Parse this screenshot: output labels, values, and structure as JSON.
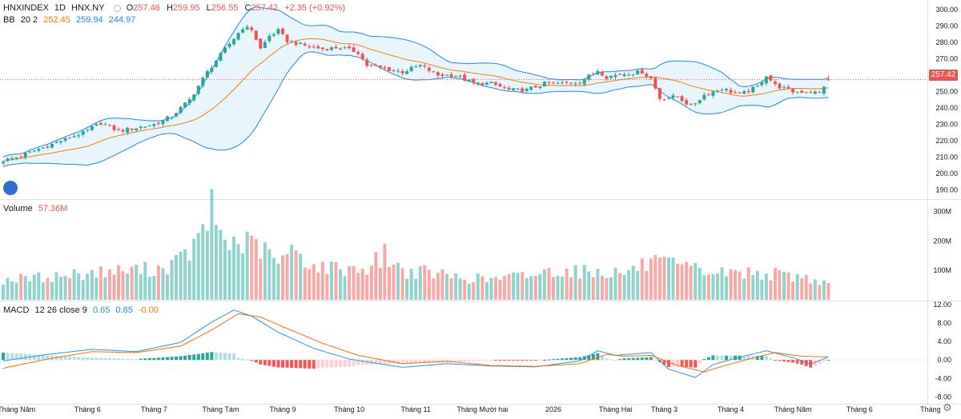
{
  "header": {
    "symbol": "HNXINDEX",
    "interval": "1D",
    "exchange": "HNX.NY",
    "open_label": "O",
    "open": "257.46",
    "high_label": "H",
    "high": "259.95",
    "low_label": "L",
    "low": "256.55",
    "close_label": "C",
    "close": "257.42",
    "change": "+2.35 (+0.92%)"
  },
  "bb_legend": {
    "name": "BB",
    "params": "20 2",
    "basis": "252.45",
    "upper": "259.94",
    "lower": "244.97"
  },
  "volume_legend": {
    "name": "Volume",
    "value": "57.36M"
  },
  "macd_legend": {
    "name": "MACD",
    "params": "12 26 close 9",
    "macd": "0.65",
    "signal": "0.65",
    "hist": "-0.00"
  },
  "price_tag": "257.42",
  "colors": {
    "up": "#26a69a",
    "down": "#ef5350",
    "basis": "#f57c00",
    "band": "#1e88e5",
    "band_fill": "#e3f2fd"
  },
  "icons": {
    "logo": "tradingview-logo-icon",
    "settings": "gear-icon"
  },
  "chart_data": [
    {
      "type": "candlestick",
      "title": "HNXINDEX 1D",
      "y_ticks": [
        "300.00",
        "290.00",
        "280.00",
        "270.00",
        "260.00",
        "250.00",
        "240.00",
        "230.00",
        "220.00",
        "210.00",
        "200.00",
        "190.00"
      ],
      "ylim": [
        185,
        300
      ],
      "x_ticks": [
        "Tháng Năm",
        "Tháng 6",
        "Tháng 7",
        "Tháng Tám",
        "Tháng 9",
        "Tháng 10",
        "Tháng 11",
        "Tháng Mười hai",
        "2026",
        "Tháng Hai",
        "Tháng 3",
        "Tháng 4",
        "Tháng Năm",
        "Tháng 6",
        "Tháng"
      ],
      "close_anchors": [
        [
          0,
          208
        ],
        [
          3,
          210
        ],
        [
          6,
          213
        ],
        [
          12,
          219
        ],
        [
          18,
          225
        ],
        [
          22,
          231
        ],
        [
          26,
          226
        ],
        [
          30,
          228
        ],
        [
          34,
          230
        ],
        [
          38,
          235
        ],
        [
          42,
          245
        ],
        [
          46,
          262
        ],
        [
          50,
          276
        ],
        [
          54,
          289
        ],
        [
          56,
          288
        ],
        [
          58,
          276
        ],
        [
          60,
          284
        ],
        [
          62,
          287
        ],
        [
          64,
          281
        ],
        [
          68,
          278
        ],
        [
          72,
          276
        ],
        [
          76,
          277
        ],
        [
          80,
          274
        ],
        [
          82,
          266
        ],
        [
          86,
          264
        ],
        [
          90,
          262
        ],
        [
          94,
          266
        ],
        [
          98,
          260
        ],
        [
          102,
          260
        ],
        [
          106,
          255
        ],
        [
          110,
          255
        ],
        [
          114,
          251
        ],
        [
          118,
          251
        ],
        [
          122,
          255
        ],
        [
          126,
          255
        ],
        [
          130,
          256
        ],
        [
          134,
          263
        ],
        [
          136,
          259
        ],
        [
          140,
          261
        ],
        [
          144,
          262
        ],
        [
          146,
          258
        ],
        [
          148,
          246
        ],
        [
          152,
          247
        ],
        [
          155,
          241
        ],
        [
          158,
          248
        ],
        [
          162,
          252
        ],
        [
          166,
          248
        ],
        [
          170,
          253
        ],
        [
          172,
          260
        ],
        [
          174,
          254
        ],
        [
          178,
          250
        ],
        [
          182,
          250
        ],
        [
          184,
          249
        ],
        [
          186,
          258
        ]
      ],
      "last": {
        "open": 257.46,
        "high": 259.95,
        "low": 256.55,
        "close": 257.42
      },
      "bollinger": {
        "length": 20,
        "mult": 2,
        "basis_last": 252.45,
        "upper_last": 259.94,
        "lower_last": 244.97
      }
    },
    {
      "type": "bar",
      "title": "Volume",
      "y_ticks": [
        "300M",
        "200M",
        "100M"
      ],
      "ylim": [
        0,
        320
      ],
      "unit": "M",
      "last_value": 57.36,
      "volume_anchors": [
        [
          0,
          70
        ],
        [
          10,
          80
        ],
        [
          20,
          95
        ],
        [
          30,
          105
        ],
        [
          36,
          110
        ],
        [
          40,
          140
        ],
        [
          44,
          200
        ],
        [
          47,
          315
        ],
        [
          50,
          200
        ],
        [
          54,
          200
        ],
        [
          58,
          180
        ],
        [
          62,
          130
        ],
        [
          66,
          175
        ],
        [
          70,
          115
        ],
        [
          76,
          110
        ],
        [
          82,
          110
        ],
        [
          86,
          160
        ],
        [
          90,
          100
        ],
        [
          96,
          95
        ],
        [
          102,
          80
        ],
        [
          110,
          70
        ],
        [
          120,
          90
        ],
        [
          125,
          105
        ],
        [
          130,
          100
        ],
        [
          140,
          95
        ],
        [
          146,
          130
        ],
        [
          150,
          120
        ],
        [
          160,
          95
        ],
        [
          170,
          95
        ],
        [
          180,
          80
        ],
        [
          186,
          57
        ]
      ]
    },
    {
      "type": "line",
      "title": "MACD",
      "series": [
        {
          "name": "MACD",
          "macd_anchors": [
            [
              0,
              -0.2
            ],
            [
              10,
              1.2
            ],
            [
              20,
              2.3
            ],
            [
              30,
              1.8
            ],
            [
              40,
              3.8
            ],
            [
              47,
              8.2
            ],
            [
              52,
              10.8
            ],
            [
              56,
              9.5
            ],
            [
              62,
              6.0
            ],
            [
              70,
              2.5
            ],
            [
              78,
              0.2
            ],
            [
              90,
              -1.6
            ],
            [
              100,
              -0.8
            ],
            [
              110,
              -1.3
            ],
            [
              120,
              -1.5
            ],
            [
              130,
              -0.2
            ],
            [
              134,
              2.0
            ],
            [
              138,
              1.0
            ],
            [
              146,
              1.6
            ],
            [
              150,
              -2.0
            ],
            [
              156,
              -3.8
            ],
            [
              160,
              -1.0
            ],
            [
              166,
              0.6
            ],
            [
              172,
              2.0
            ],
            [
              178,
              0.5
            ],
            [
              182,
              -0.9
            ],
            [
              186,
              0.65
            ]
          ]
        },
        {
          "name": "signal",
          "signal_anchors": [
            [
              0,
              -1.8
            ],
            [
              10,
              0.2
            ],
            [
              20,
              1.8
            ],
            [
              30,
              1.6
            ],
            [
              40,
              3.0
            ],
            [
              47,
              6.5
            ],
            [
              53,
              10.0
            ],
            [
              58,
              9.3
            ],
            [
              64,
              6.8
            ],
            [
              72,
              3.6
            ],
            [
              80,
              1.0
            ],
            [
              90,
              -0.8
            ],
            [
              100,
              -0.3
            ],
            [
              110,
              -1.2
            ],
            [
              120,
              -1.4
            ],
            [
              130,
              -0.8
            ],
            [
              136,
              1.2
            ],
            [
              140,
              0.8
            ],
            [
              146,
              1.0
            ],
            [
              152,
              -1.2
            ],
            [
              158,
              -2.6
            ],
            [
              162,
              -1.4
            ],
            [
              168,
              0.2
            ],
            [
              174,
              1.6
            ],
            [
              180,
              0.8
            ],
            [
              186,
              0.65
            ]
          ]
        }
      ],
      "y_ticks": [
        "12.00",
        "8.00",
        "4.00",
        "0.00",
        "-4.00",
        "-8.00"
      ],
      "ylim": [
        -9.5,
        12.5
      ],
      "last": {
        "macd": 0.65,
        "signal": 0.65,
        "hist": -0.0
      }
    }
  ]
}
